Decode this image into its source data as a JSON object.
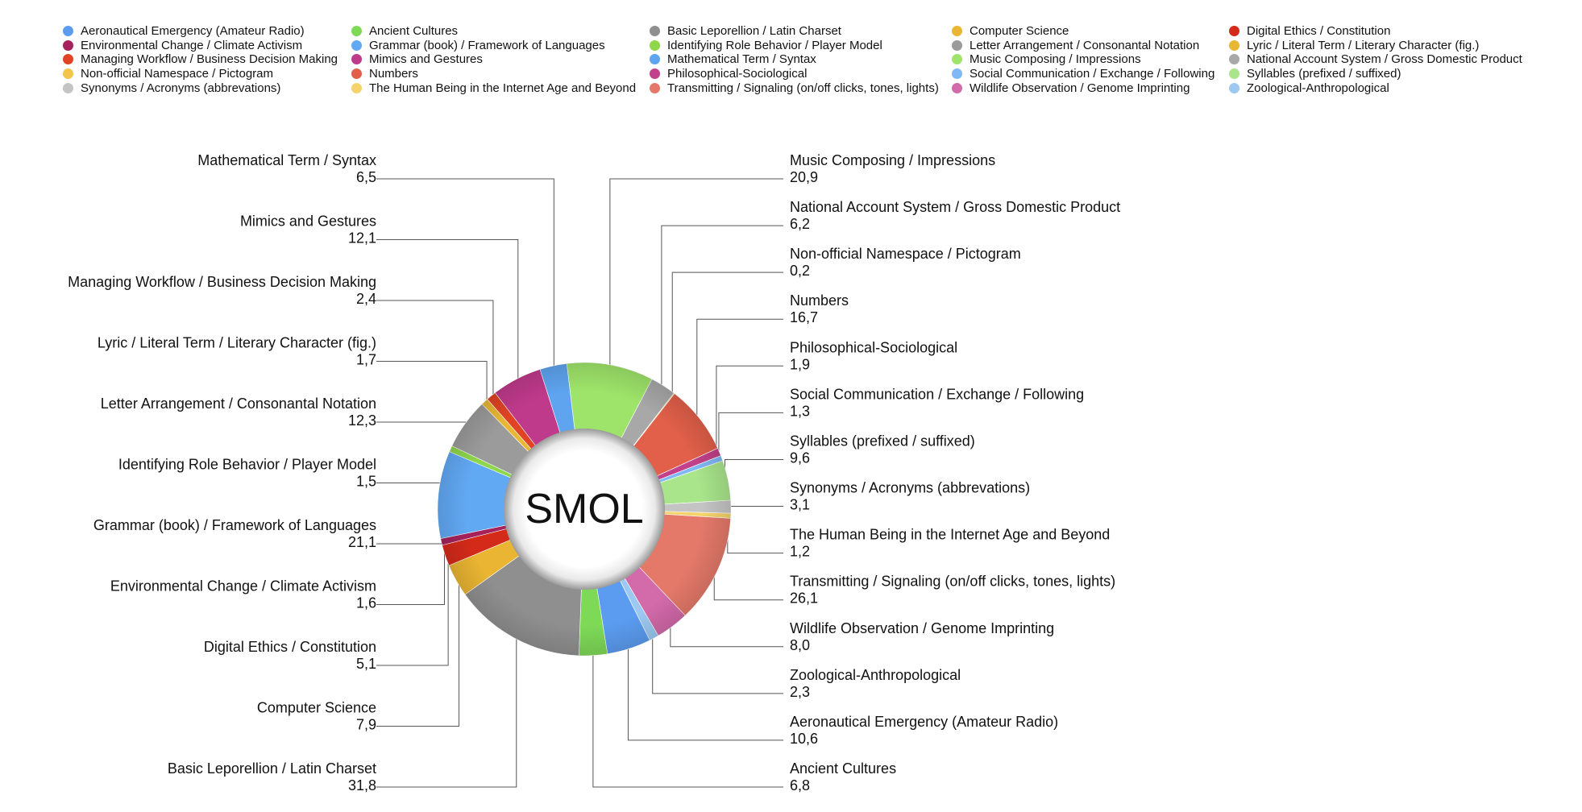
{
  "chart_data": {
    "type": "pie",
    "variant": "donut",
    "center_label": "SMOL",
    "legend_placement": "top",
    "slices": [
      {
        "name": "Music Composing / Impressions",
        "value": 20.9,
        "label": "20,9",
        "color": "#9ee46a"
      },
      {
        "name": "National Account System / Gross Domestic Product",
        "value": 6.2,
        "label": "6,2",
        "color": "#a8a8a8"
      },
      {
        "name": "Non-official Namespace / Pictogram",
        "value": 0.2,
        "label": "0,2",
        "color": "#f1c64b"
      },
      {
        "name": "Numbers",
        "value": 16.7,
        "label": "16,7",
        "color": "#e2604a"
      },
      {
        "name": "Philosophical-Sociological",
        "value": 1.9,
        "label": "1,9",
        "color": "#c2418a"
      },
      {
        "name": "Social Communication / Exchange / Following",
        "value": 1.3,
        "label": "1,3",
        "color": "#80b8f6"
      },
      {
        "name": "Syllables (prefixed / suffixed)",
        "value": 9.6,
        "label": "9,6",
        "color": "#a9e58b"
      },
      {
        "name": "Synonyms / Acronyms (abbrevations)",
        "value": 3.1,
        "label": "3,1",
        "color": "#c4c4c4"
      },
      {
        "name": "The Human Being in the Internet Age and Beyond",
        "value": 1.2,
        "label": "1,2",
        "color": "#f4d46a"
      },
      {
        "name": "Transmitting / Signaling (on/off clicks, tones, lights)",
        "value": 26.1,
        "label": "26,1",
        "color": "#e4796a"
      },
      {
        "name": "Wildlife Observation / Genome Imprinting",
        "value": 8.0,
        "label": "8,0",
        "color": "#d36aaa"
      },
      {
        "name": "Zoological-Anthropological",
        "value": 2.3,
        "label": "2,3",
        "color": "#9cc9f2"
      },
      {
        "name": "Aeronautical Emergency (Amateur Radio)",
        "value": 10.6,
        "label": "10,6",
        "color": "#5b9cf0"
      },
      {
        "name": "Ancient Cultures",
        "value": 6.8,
        "label": "6,8",
        "color": "#7ed957"
      },
      {
        "name": "Basic Leporellion / Latin Charset",
        "value": 31.8,
        "label": "31,8",
        "color": "#8f8f8f"
      },
      {
        "name": "Computer Science",
        "value": 7.9,
        "label": "7,9",
        "color": "#e9b532"
      },
      {
        "name": "Digital Ethics / Constitution",
        "value": 5.1,
        "label": "5,1",
        "color": "#d42a1a"
      },
      {
        "name": "Environmental Change / Climate Activism",
        "value": 1.6,
        "label": "1,6",
        "color": "#a5225c"
      },
      {
        "name": "Grammar (book) / Framework of Languages",
        "value": 21.1,
        "label": "21,1",
        "color": "#62a9f4"
      },
      {
        "name": "Identifying Role Behavior / Player Model",
        "value": 1.5,
        "label": "1,5",
        "color": "#8ed64a"
      },
      {
        "name": "Letter Arrangement / Consonantal Notation",
        "value": 12.3,
        "label": "12,3",
        "color": "#9b9b9b"
      },
      {
        "name": "Lyric / Literal Term / Literary Character (fig.)",
        "value": 1.7,
        "label": "1,7",
        "color": "#e8b834"
      },
      {
        "name": "Managing Workflow / Business Decision Making",
        "value": 2.4,
        "label": "2,4",
        "color": "#e04425"
      },
      {
        "name": "Mimics and Gestures",
        "value": 12.1,
        "label": "12,1",
        "color": "#c03a8c"
      },
      {
        "name": "Mathematical Term / Syntax",
        "value": 6.5,
        "label": "6,5",
        "color": "#5ea4ef"
      }
    ]
  },
  "legend": {
    "items": [
      {
        "label": "Aeronautical Emergency (Amateur Radio)",
        "color": "#5b9cf0"
      },
      {
        "label": "Environmental Change / Climate Activism",
        "color": "#a5225c"
      },
      {
        "label": "Managing Workflow / Business Decision Making",
        "color": "#e04425"
      },
      {
        "label": "Non-official Namespace / Pictogram",
        "color": "#f1c64b"
      },
      {
        "label": "Synonyms / Acronyms (abbrevations)",
        "color": "#c4c4c4"
      },
      {
        "label": "Ancient Cultures",
        "color": "#7ed957"
      },
      {
        "label": "Grammar (book) / Framework of Languages",
        "color": "#62a9f4"
      },
      {
        "label": "Mimics and Gestures",
        "color": "#c03a8c"
      },
      {
        "label": "Numbers",
        "color": "#e2604a"
      },
      {
        "label": "The Human Being in the Internet Age and Beyond",
        "color": "#f4d46a"
      },
      {
        "label": "Basic Leporellion / Latin Charset",
        "color": "#8f8f8f"
      },
      {
        "label": "Identifying Role Behavior / Player Model",
        "color": "#8ed64a"
      },
      {
        "label": "Mathematical Term / Syntax",
        "color": "#5ea4ef"
      },
      {
        "label": "Philosophical-Sociological",
        "color": "#c2418a"
      },
      {
        "label": "Transmitting / Signaling (on/off clicks, tones, lights)",
        "color": "#e4796a"
      },
      {
        "label": "Computer Science",
        "color": "#e9b532"
      },
      {
        "label": "Letter Arrangement / Consonantal Notation",
        "color": "#9b9b9b"
      },
      {
        "label": "Music Composing / Impressions",
        "color": "#9ee46a"
      },
      {
        "label": "Social Communication / Exchange / Following",
        "color": "#80b8f6"
      },
      {
        "label": "Wildlife Observation / Genome Imprinting",
        "color": "#d36aaa"
      },
      {
        "label": "Digital Ethics / Constitution",
        "color": "#d42a1a"
      },
      {
        "label": "Lyric / Literal Term / Literary Character (fig.)",
        "color": "#e8b834"
      },
      {
        "label": "National Account System / Gross Domestic Product",
        "color": "#a8a8a8"
      },
      {
        "label": "Syllables (prefixed / suffixed)",
        "color": "#a9e58b"
      },
      {
        "label": "Zoological-Anthropological",
        "color": "#9cc9f2"
      }
    ]
  }
}
